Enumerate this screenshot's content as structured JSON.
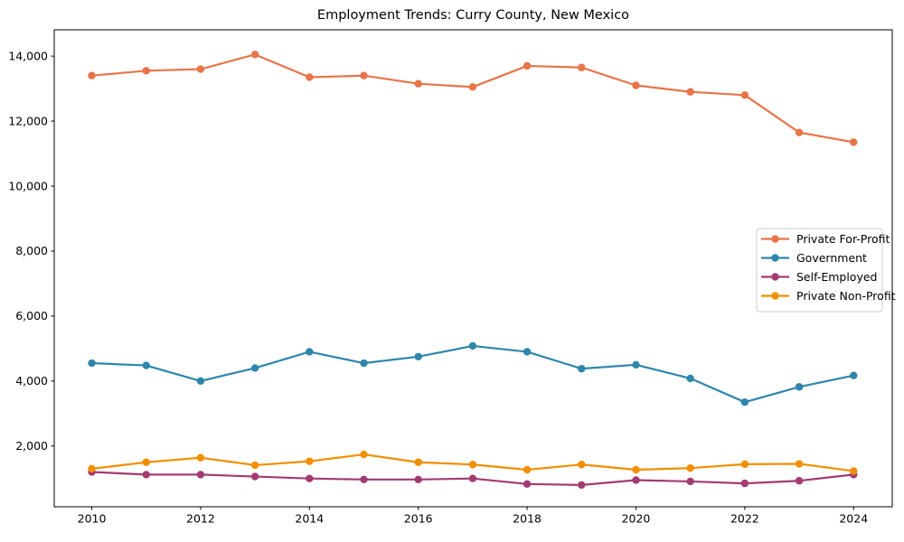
{
  "title": "Employment Trends: Curry County, New Mexico",
  "chart_data": {
    "type": "line",
    "title": "Employment Trends: Curry County, New Mexico",
    "xlabel": "",
    "ylabel": "",
    "grid": false,
    "marker": "circle",
    "x": [
      2010,
      2011,
      2012,
      2013,
      2014,
      2015,
      2016,
      2017,
      2018,
      2019,
      2020,
      2021,
      2022,
      2023,
      2024
    ],
    "xticks": [
      2010,
      2012,
      2014,
      2016,
      2018,
      2020,
      2022,
      2024
    ],
    "yticks": [
      2000,
      4000,
      6000,
      8000,
      10000,
      12000,
      14000
    ],
    "xlim": [
      2009.31,
      2024.71
    ],
    "ylim": [
      130,
      14810
    ],
    "legend": {
      "position": "center right",
      "border_color": "#cccccc",
      "background": "#ffffff"
    },
    "series": [
      {
        "name": "Private For-Profit",
        "color": "#E87448",
        "values": [
          13400,
          13550,
          13600,
          14050,
          13350,
          13400,
          13150,
          13050,
          13700,
          13650,
          13100,
          12900,
          12800,
          11650,
          11350
        ]
      },
      {
        "name": "Government",
        "color": "#2E86AB",
        "values": [
          4550,
          4480,
          4000,
          4400,
          4900,
          4550,
          4750,
          5080,
          4900,
          4380,
          4500,
          4080,
          3350,
          3820,
          4170
        ]
      },
      {
        "name": "Self-Employed",
        "color": "#A23B72",
        "values": [
          1200,
          1120,
          1120,
          1060,
          1000,
          970,
          970,
          1000,
          830,
          800,
          950,
          910,
          850,
          930,
          1120
        ]
      },
      {
        "name": "Private Non-Profit",
        "color": "#F18F01",
        "values": [
          1300,
          1500,
          1640,
          1410,
          1530,
          1740,
          1500,
          1430,
          1270,
          1430,
          1270,
          1320,
          1440,
          1450,
          1230
        ]
      }
    ]
  }
}
